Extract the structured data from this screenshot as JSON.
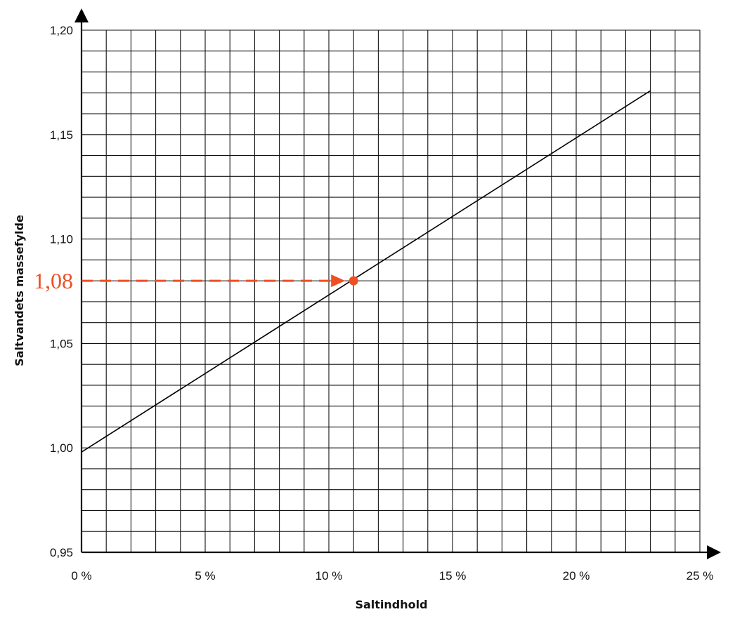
{
  "chart_data": {
    "type": "line",
    "title": "",
    "xlabel": "Saltindhold",
    "ylabel": "Saltvandets massefylde",
    "xlim": [
      0,
      25
    ],
    "ylim": [
      0.95,
      1.2
    ],
    "grid": true,
    "x_ticks": [
      "0 %",
      "5 %",
      "10 %",
      "15 %",
      "20 %",
      "25 %"
    ],
    "y_ticks": [
      "0,95",
      "1,00",
      "1,05",
      "1,10",
      "1,15",
      "1,20"
    ],
    "series": [
      {
        "x": [
          0,
          23
        ],
        "y": [
          0.998,
          1.171
        ]
      }
    ],
    "annotation": {
      "label": "1,08",
      "x": 11,
      "y": 1.08,
      "color": "#f04e23"
    }
  }
}
